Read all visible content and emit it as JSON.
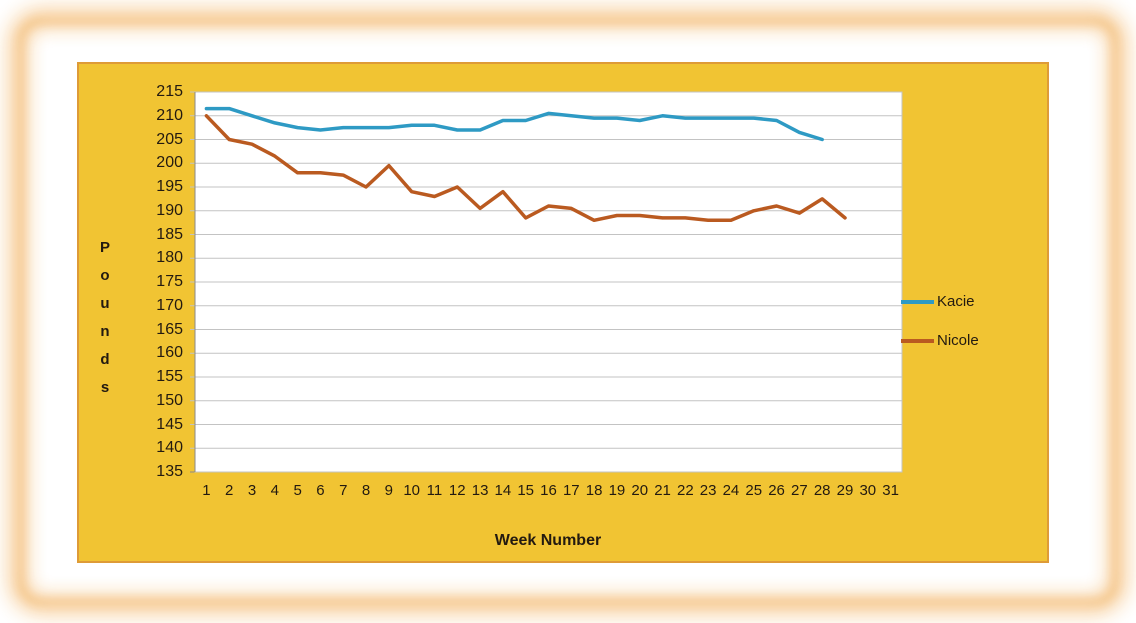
{
  "card": {
    "background": "#F1C433",
    "border_color": "#DE9B37",
    "frame_glow_color": "#F0A23F",
    "text_color": "#231A10"
  },
  "chart_data": {
    "type": "line",
    "title": "",
    "xlabel": "Week Number",
    "ylabel": "Pounds",
    "ylim": [
      135,
      215
    ],
    "ytick_step": 5,
    "grid": true,
    "legend_position": "right",
    "x_categories": [
      1,
      2,
      3,
      4,
      5,
      6,
      7,
      8,
      9,
      10,
      11,
      12,
      13,
      14,
      15,
      16,
      17,
      18,
      19,
      20,
      21,
      22,
      23,
      24,
      25,
      26,
      27,
      28,
      29,
      30,
      31
    ],
    "series": [
      {
        "name": "Kacie",
        "color": "#2E9AC4",
        "values": [
          211.5,
          211.5,
          210,
          208.5,
          207.5,
          207,
          207.5,
          207.5,
          207.5,
          208,
          208,
          207,
          207,
          209,
          209,
          210.5,
          210,
          209.5,
          209.5,
          209,
          210,
          209.5,
          209.5,
          209.5,
          209.5,
          209,
          206.5,
          205,
          null,
          null,
          null
        ]
      },
      {
        "name": "Nicole",
        "color": "#BA5A20",
        "values": [
          210,
          205,
          204,
          201.5,
          198,
          198,
          197.5,
          195,
          199.5,
          194,
          193,
          195,
          190.5,
          194,
          188.5,
          191,
          190.5,
          188,
          189,
          189,
          188.5,
          188.5,
          188,
          188,
          190,
          191,
          189.5,
          192.5,
          188.5,
          null,
          null
        ]
      }
    ],
    "gridline_color": "#C3C3C3",
    "axis_line_color": "#8A8A8A"
  },
  "legend": {
    "items": [
      {
        "label": "Kacie"
      },
      {
        "label": "Nicole"
      }
    ]
  }
}
